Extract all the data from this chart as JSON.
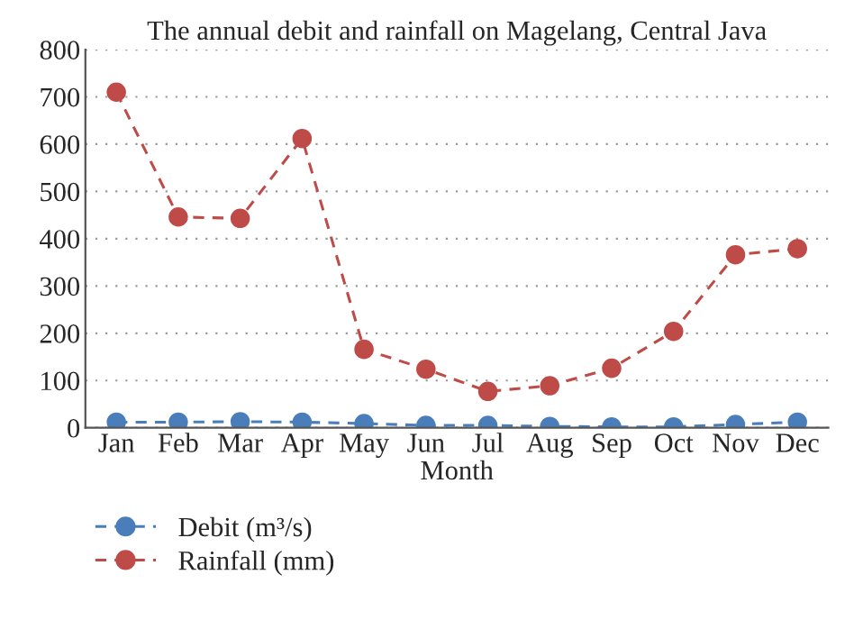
{
  "chart_data": {
    "type": "line",
    "title": "The annual debit and rainfall on Magelang, Central Java",
    "xlabel": "Month",
    "categories": [
      "Jan",
      "Feb",
      "Mar",
      "Apr",
      "May",
      "Jun",
      "Jul",
      "Aug",
      "Sep",
      "Oct",
      "Nov",
      "Dec"
    ],
    "series": [
      {
        "name": "Debit (m³/s)",
        "color": "#4a7ebb",
        "values": [
          12,
          12,
          13,
          12,
          9,
          5,
          5,
          3,
          2,
          2,
          7,
          12
        ]
      },
      {
        "name": "Rainfall (mm)",
        "color": "#be4b48",
        "values": [
          710,
          446,
          443,
          612,
          166,
          124,
          77,
          89,
          126,
          204,
          366,
          379
        ]
      }
    ],
    "ylim": [
      0,
      800
    ],
    "yticks": [
      0,
      100,
      200,
      300,
      400,
      500,
      600,
      700,
      800
    ],
    "grid": "y",
    "legend": "bottom",
    "marker": "circle",
    "line_style": "dashed"
  }
}
